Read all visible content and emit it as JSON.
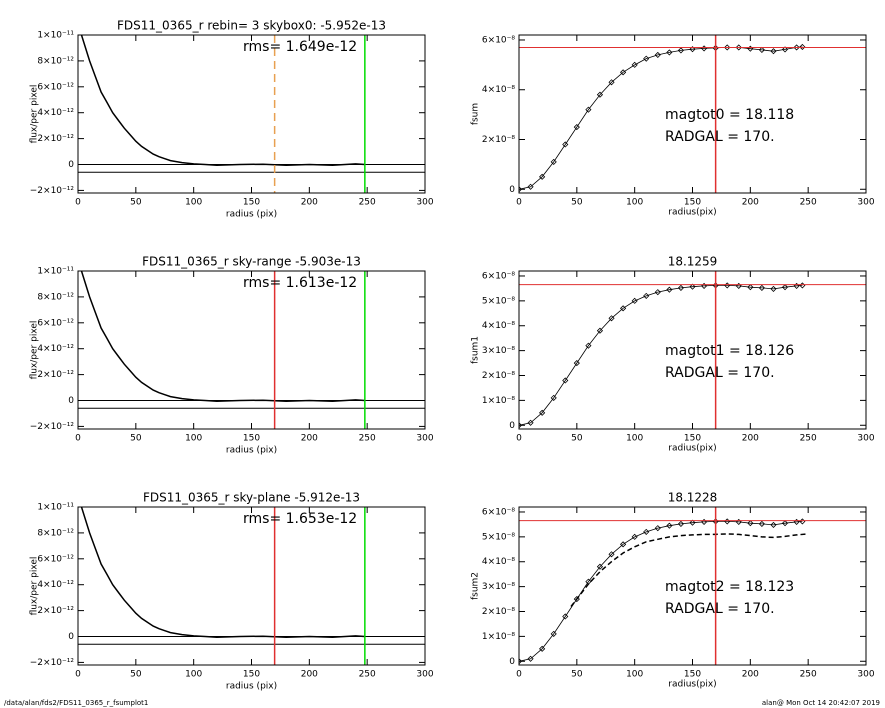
{
  "chart_data": [
    {
      "type": "line",
      "title": "FDS11_0365_r rebin= 3    skybox0: -5.952e-13",
      "annotations": [
        "rms= 1.649e-12"
      ],
      "xlabel": "radius (pix)",
      "ylabel": "flux/per pixel",
      "xlim": [
        0,
        300
      ],
      "ylim": [
        -2.2e-12,
        1e-11
      ],
      "xticks": [
        0,
        50,
        100,
        150,
        200,
        250,
        300
      ],
      "yticks": [
        {
          "value": -2e-12,
          "label": "−2×10⁻¹²"
        },
        0,
        {
          "value": 2e-12,
          "label": "2×10⁻¹²"
        },
        {
          "value": 4e-12,
          "label": "4×10⁻¹²"
        },
        {
          "value": 6e-12,
          "label": "6×10⁻¹²"
        },
        {
          "value": 8e-12,
          "label": "8×10⁻¹²"
        },
        {
          "value": 1e-11,
          "label": "1×10⁻¹¹"
        }
      ],
      "vlines": [
        {
          "x": 170,
          "color": "#e8a050",
          "dash": true
        },
        {
          "x": 248,
          "color": "#00dd00"
        }
      ],
      "hlines": [
        {
          "y": 0,
          "color": "#000000"
        },
        {
          "y": -6e-13,
          "color": "#000000"
        }
      ],
      "series": [
        {
          "color": "#000000",
          "x": [
            3,
            10,
            15,
            20,
            25,
            30,
            35,
            40,
            45,
            50,
            55,
            60,
            65,
            70,
            75,
            80,
            90,
            100,
            110,
            120,
            140,
            160,
            180,
            200,
            220,
            240,
            248
          ],
          "values": [
            1e-11,
            8e-12,
            6.8e-12,
            5.6e-12,
            4.8e-12,
            4e-12,
            3.4e-12,
            2.8e-12,
            2.3e-12,
            1.8e-12,
            1.4e-12,
            1.1e-12,
            8e-13,
            6e-13,
            4.5e-13,
            3e-13,
            1.5e-13,
            5e-14,
            0,
            -5e-14,
            0,
            2e-14,
            -5e-14,
            0,
            -5e-14,
            5e-14,
            0
          ]
        }
      ]
    },
    {
      "type": "line",
      "annotations": [
        "magtot0 =  18.118",
        "RADGAL =    170."
      ],
      "xlabel": "radius(pix)",
      "ylabel": "fsum",
      "xlim": [
        0,
        300
      ],
      "ylim": [
        -1.5e-09,
        6.2e-08
      ],
      "xticks": [
        0,
        50,
        100,
        150,
        200,
        250,
        300
      ],
      "yticks": [
        0,
        {
          "value": 2e-08,
          "label": "2×10⁻⁸"
        },
        {
          "value": 4e-08,
          "label": "4×10⁻⁸"
        },
        {
          "value": 6e-08,
          "label": "6×10⁻⁸"
        }
      ],
      "vlines": [
        {
          "x": 170,
          "color": "#e03030"
        }
      ],
      "hlines": [
        {
          "y": 5.7e-08,
          "color": "#e03030"
        }
      ],
      "series": [
        {
          "color": "#000000",
          "markers": true,
          "x": [
            0,
            10,
            20,
            30,
            40,
            50,
            60,
            70,
            80,
            90,
            100,
            110,
            120,
            130,
            140,
            150,
            160,
            170,
            180,
            190,
            200,
            210,
            220,
            230,
            240,
            245
          ],
          "values": [
            0,
            1e-09,
            5e-09,
            1.1e-08,
            1.8e-08,
            2.5e-08,
            3.2e-08,
            3.8e-08,
            4.3e-08,
            4.7e-08,
            5e-08,
            5.25e-08,
            5.4e-08,
            5.5e-08,
            5.58e-08,
            5.63e-08,
            5.66e-08,
            5.68e-08,
            5.7e-08,
            5.7e-08,
            5.65e-08,
            5.6e-08,
            5.55e-08,
            5.62e-08,
            5.7e-08,
            5.72e-08
          ]
        }
      ]
    },
    {
      "type": "line",
      "title": "FDS11_0365_r sky-range -5.903e-13",
      "annotations": [
        "rms= 1.613e-12"
      ],
      "xlabel": "radius (pix)",
      "ylabel": "flux/per pixel",
      "xlim": [
        0,
        300
      ],
      "ylim": [
        -2.2e-12,
        1e-11
      ],
      "xticks": [
        0,
        50,
        100,
        150,
        200,
        250,
        300
      ],
      "yticks": [
        {
          "value": -2e-12,
          "label": "−2×10⁻¹²"
        },
        0,
        {
          "value": 2e-12,
          "label": "2×10⁻¹²"
        },
        {
          "value": 4e-12,
          "label": "4×10⁻¹²"
        },
        {
          "value": 6e-12,
          "label": "6×10⁻¹²"
        },
        {
          "value": 8e-12,
          "label": "8×10⁻¹²"
        },
        {
          "value": 1e-11,
          "label": "1×10⁻¹¹"
        }
      ],
      "vlines": [
        {
          "x": 170,
          "color": "#e03030"
        },
        {
          "x": 248,
          "color": "#00dd00"
        }
      ],
      "hlines": [
        {
          "y": 0,
          "color": "#000000"
        },
        {
          "y": -6e-13,
          "color": "#000000"
        }
      ],
      "series": [
        {
          "color": "#000000",
          "x": [
            3,
            10,
            15,
            20,
            25,
            30,
            35,
            40,
            45,
            50,
            55,
            60,
            65,
            70,
            75,
            80,
            90,
            100,
            110,
            120,
            140,
            160,
            180,
            200,
            220,
            240,
            248
          ],
          "values": [
            1e-11,
            8e-12,
            6.8e-12,
            5.6e-12,
            4.8e-12,
            4e-12,
            3.4e-12,
            2.8e-12,
            2.3e-12,
            1.8e-12,
            1.4e-12,
            1.1e-12,
            8e-13,
            6e-13,
            4.5e-13,
            3e-13,
            1.5e-13,
            5e-14,
            0,
            -5e-14,
            0,
            2e-14,
            -5e-14,
            0,
            -5e-14,
            5e-14,
            0
          ]
        }
      ]
    },
    {
      "type": "line",
      "title": "18.1259",
      "annotations": [
        "magtot1 =  18.126",
        "RADGAL =    170."
      ],
      "xlabel": "radius(pix)",
      "ylabel": "fsum1",
      "xlim": [
        0,
        300
      ],
      "ylim": [
        -1.5e-09,
        6.2e-08
      ],
      "xticks": [
        0,
        50,
        100,
        150,
        200,
        250,
        300
      ],
      "yticks": [
        0,
        {
          "value": 1e-08,
          "label": "1×10⁻⁸"
        },
        {
          "value": 2e-08,
          "label": "2×10⁻⁸"
        },
        {
          "value": 3e-08,
          "label": "3×10⁻⁸"
        },
        {
          "value": 4e-08,
          "label": "4×10⁻⁸"
        },
        {
          "value": 5e-08,
          "label": "5×10⁻⁸"
        },
        {
          "value": 6e-08,
          "label": "6×10⁻⁸"
        }
      ],
      "vlines": [
        {
          "x": 170,
          "color": "#e03030"
        }
      ],
      "hlines": [
        {
          "y": 5.65e-08,
          "color": "#e03030"
        }
      ],
      "series": [
        {
          "color": "#000000",
          "markers": true,
          "x": [
            0,
            10,
            20,
            30,
            40,
            50,
            60,
            70,
            80,
            90,
            100,
            110,
            120,
            130,
            140,
            150,
            160,
            170,
            180,
            190,
            200,
            210,
            220,
            230,
            240,
            245
          ],
          "values": [
            0,
            1e-09,
            5e-09,
            1.1e-08,
            1.8e-08,
            2.5e-08,
            3.2e-08,
            3.8e-08,
            4.3e-08,
            4.7e-08,
            5e-08,
            5.2e-08,
            5.35e-08,
            5.45e-08,
            5.52e-08,
            5.57e-08,
            5.6e-08,
            5.62e-08,
            5.62e-08,
            5.6e-08,
            5.55e-08,
            5.52e-08,
            5.48e-08,
            5.55e-08,
            5.6e-08,
            5.62e-08
          ]
        }
      ]
    },
    {
      "type": "line",
      "title": "FDS11_0365_r sky-plane -5.912e-13",
      "annotations": [
        "rms= 1.653e-12"
      ],
      "xlabel": "radius (pix)",
      "ylabel": "flux/per pixel",
      "xlim": [
        0,
        300
      ],
      "ylim": [
        -2.2e-12,
        1e-11
      ],
      "xticks": [
        0,
        50,
        100,
        150,
        200,
        250,
        300
      ],
      "yticks": [
        {
          "value": -2e-12,
          "label": "−2×10⁻¹²"
        },
        0,
        {
          "value": 2e-12,
          "label": "2×10⁻¹²"
        },
        {
          "value": 4e-12,
          "label": "4×10⁻¹²"
        },
        {
          "value": 6e-12,
          "label": "6×10⁻¹²"
        },
        {
          "value": 8e-12,
          "label": "8×10⁻¹²"
        },
        {
          "value": 1e-11,
          "label": "1×10⁻¹¹"
        }
      ],
      "vlines": [
        {
          "x": 170,
          "color": "#e03030"
        },
        {
          "x": 248,
          "color": "#00dd00"
        }
      ],
      "hlines": [
        {
          "y": 0,
          "color": "#000000"
        },
        {
          "y": -6e-13,
          "color": "#000000"
        }
      ],
      "series": [
        {
          "color": "#000000",
          "x": [
            3,
            10,
            15,
            20,
            25,
            30,
            35,
            40,
            45,
            50,
            55,
            60,
            65,
            70,
            75,
            80,
            90,
            100,
            110,
            120,
            140,
            160,
            180,
            200,
            220,
            240,
            248
          ],
          "values": [
            1e-11,
            8e-12,
            6.8e-12,
            5.6e-12,
            4.8e-12,
            4e-12,
            3.4e-12,
            2.8e-12,
            2.3e-12,
            1.8e-12,
            1.4e-12,
            1.1e-12,
            8e-13,
            6e-13,
            4.5e-13,
            3e-13,
            1.5e-13,
            5e-14,
            0,
            -5e-14,
            0,
            2e-14,
            -5e-14,
            0,
            -5e-14,
            5e-14,
            0
          ]
        }
      ]
    },
    {
      "type": "line",
      "title": "18.1228",
      "annotations": [
        "magtot2 =  18.123",
        "RADGAL =    170."
      ],
      "xlabel": "radius(pix)",
      "ylabel": "fsum2",
      "xlim": [
        0,
        300
      ],
      "ylim": [
        -1.5e-09,
        6.2e-08
      ],
      "xticks": [
        0,
        50,
        100,
        150,
        200,
        250,
        300
      ],
      "yticks": [
        0,
        {
          "value": 1e-08,
          "label": "1×10⁻⁸"
        },
        {
          "value": 2e-08,
          "label": "2×10⁻⁸"
        },
        {
          "value": 3e-08,
          "label": "3×10⁻⁸"
        },
        {
          "value": 4e-08,
          "label": "4×10⁻⁸"
        },
        {
          "value": 5e-08,
          "label": "5×10⁻⁸"
        },
        {
          "value": 6e-08,
          "label": "6×10⁻⁸"
        }
      ],
      "vlines": [
        {
          "x": 170,
          "color": "#e03030"
        }
      ],
      "hlines": [
        {
          "y": 5.65e-08,
          "color": "#e03030"
        }
      ],
      "series": [
        {
          "color": "#000000",
          "markers": true,
          "x": [
            0,
            10,
            20,
            30,
            40,
            50,
            60,
            70,
            80,
            90,
            100,
            110,
            120,
            130,
            140,
            150,
            160,
            170,
            180,
            190,
            200,
            210,
            220,
            230,
            240,
            245
          ],
          "values": [
            0,
            1e-09,
            5e-09,
            1.1e-08,
            1.8e-08,
            2.5e-08,
            3.2e-08,
            3.8e-08,
            4.3e-08,
            4.7e-08,
            5e-08,
            5.2e-08,
            5.35e-08,
            5.45e-08,
            5.52e-08,
            5.57e-08,
            5.6e-08,
            5.62e-08,
            5.62e-08,
            5.6e-08,
            5.55e-08,
            5.52e-08,
            5.48e-08,
            5.55e-08,
            5.6e-08,
            5.62e-08
          ]
        },
        {
          "color": "#000000",
          "dash": true,
          "x": [
            45,
            60,
            70,
            80,
            90,
            100,
            110,
            120,
            130,
            140,
            150,
            160,
            170,
            180,
            190,
            200,
            210,
            220,
            230,
            240,
            250
          ],
          "values": [
            2.2e-08,
            3.1e-08,
            3.6e-08,
            4e-08,
            4.35e-08,
            4.6e-08,
            4.8e-08,
            4.9e-08,
            5e-08,
            5.05e-08,
            5.08e-08,
            5.1e-08,
            5.1e-08,
            5.12e-08,
            5.1e-08,
            5.05e-08,
            5e-08,
            4.98e-08,
            5.02e-08,
            5.08e-08,
            5.12e-08
          ]
        }
      ]
    }
  ],
  "footer": {
    "left": "/data/alan/fds2/FDS11_0365_r_fsumplot1",
    "right": "alan@  Mon Oct 14 20:42:07 2019"
  }
}
